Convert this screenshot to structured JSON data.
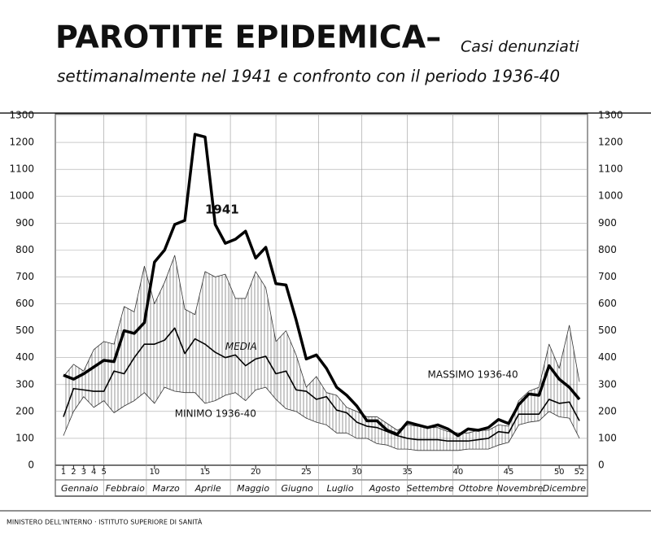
{
  "chart_data": {
    "type": "line",
    "title": "PAROTITE EPIDEMICA–",
    "title_suffix": "Casi denunziati",
    "subtitle": "settimanalmente nel 1941 e confronto con il periodo 1936-40",
    "footer": "MINISTERO DELL'INTERNO · ISTITUTO SUPERIORE DI SANITÀ",
    "x": [
      1,
      2,
      3,
      4,
      5,
      6,
      7,
      8,
      9,
      10,
      11,
      12,
      13,
      14,
      15,
      16,
      17,
      18,
      19,
      20,
      21,
      22,
      23,
      24,
      25,
      26,
      27,
      28,
      29,
      30,
      31,
      32,
      33,
      34,
      35,
      36,
      37,
      38,
      39,
      40,
      41,
      42,
      43,
      44,
      45,
      46,
      47,
      48,
      49,
      50,
      51,
      52
    ],
    "xlim": [
      0.2,
      52.8
    ],
    "xticks": [
      1,
      2,
      3,
      4,
      5,
      10,
      15,
      20,
      25,
      30,
      35,
      40,
      45,
      50,
      52
    ],
    "ylim": [
      0,
      1300
    ],
    "yticks": [
      0,
      100,
      200,
      300,
      400,
      500,
      600,
      700,
      800,
      900,
      1000,
      1100,
      1200,
      1300
    ],
    "grid": true,
    "months": [
      "Gennaio",
      "Febbraio",
      "Marzo",
      "Aprile",
      "Maggio",
      "Giugno",
      "Luglio",
      "Agosto",
      "Settembre",
      "Ottobre",
      "Novembre",
      "Dicembre"
    ],
    "month_edges": [
      0.2,
      5,
      9.2,
      13.1,
      17.5,
      22,
      26.2,
      30.5,
      35,
      39.5,
      44,
      48.2,
      52.8
    ],
    "band_color": "#555",
    "series": [
      {
        "name": "1941",
        "color": "#000",
        "width": 3.5,
        "label_at": 15,
        "label_value": 950,
        "values": [
          335,
          320,
          340,
          365,
          390,
          385,
          500,
          490,
          530,
          755,
          800,
          895,
          910,
          1230,
          1220,
          895,
          825,
          840,
          870,
          770,
          810,
          675,
          670,
          540,
          395,
          410,
          360,
          290,
          260,
          220,
          165,
          165,
          130,
          115,
          160,
          150,
          140,
          150,
          135,
          110,
          135,
          130,
          140,
          170,
          155,
          225,
          265,
          260,
          370,
          320,
          290,
          245
        ]
      },
      {
        "name": "MEDIA",
        "color": "#000",
        "width": 1.6,
        "label_at": 17,
        "label_value": 440,
        "values": [
          180,
          285,
          280,
          275,
          275,
          350,
          340,
          400,
          450,
          450,
          465,
          510,
          415,
          470,
          450,
          420,
          400,
          410,
          370,
          395,
          405,
          340,
          350,
          280,
          275,
          245,
          255,
          205,
          195,
          160,
          145,
          140,
          125,
          110,
          100,
          95,
          95,
          95,
          90,
          90,
          90,
          95,
          100,
          125,
          120,
          190,
          190,
          190,
          245,
          230,
          235,
          165
        ]
      },
      {
        "name": "MASSIMO 1936-40",
        "color": "#333",
        "width": 0.8,
        "label_at": 37,
        "label_value": 335,
        "values": [
          330,
          375,
          350,
          430,
          460,
          450,
          590,
          570,
          740,
          600,
          680,
          780,
          580,
          560,
          720,
          700,
          710,
          620,
          620,
          720,
          660,
          460,
          500,
          410,
          290,
          330,
          270,
          260,
          215,
          200,
          180,
          180,
          155,
          130,
          150,
          145,
          140,
          140,
          125,
          120,
          120,
          130,
          130,
          150,
          145,
          240,
          275,
          290,
          450,
          360,
          520,
          310
        ]
      },
      {
        "name": "MINIMO 1936-40",
        "color": "#333",
        "width": 0.8,
        "label_at": 12,
        "label_value": 190,
        "values": [
          110,
          200,
          255,
          215,
          240,
          195,
          220,
          240,
          270,
          230,
          290,
          275,
          270,
          270,
          230,
          240,
          260,
          270,
          240,
          280,
          290,
          245,
          210,
          200,
          175,
          160,
          150,
          120,
          120,
          100,
          100,
          80,
          75,
          60,
          60,
          55,
          55,
          55,
          55,
          55,
          60,
          60,
          60,
          75,
          85,
          150,
          160,
          165,
          200,
          180,
          175,
          100
        ]
      }
    ]
  }
}
